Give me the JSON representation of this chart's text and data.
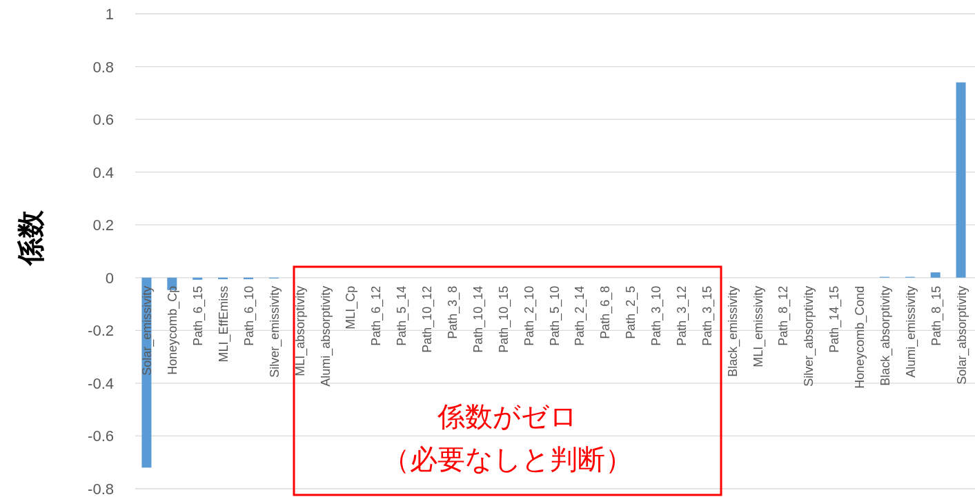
{
  "chart_data": {
    "type": "bar",
    "ylabel": "係数",
    "categories": [
      "Solar_emissivity",
      "Honeycomb_Cp",
      "Path_6_15",
      "MLI_EffEmiss",
      "Path_6_10",
      "Silver_emissivity",
      "MLI_absorptivity",
      "Alumi_absorptivity",
      "MLI_Cp",
      "Path_6_12",
      "Path_5_14",
      "Path_10_12",
      "Path_3_8",
      "Path_10_14",
      "Path_10_15",
      "Path_2_10",
      "Path_5_10",
      "Path_2_14",
      "Path_6_8",
      "Path_2_5",
      "Path_3_10",
      "Path_3_12",
      "Path_3_15",
      "Black_emissivity",
      "MLI_emissivity",
      "Path_8_12",
      "Silver_absorptivity",
      "Path_14_15",
      "Honeycomb_Cond",
      "Black_absorptivity",
      "Alumi_emissivity",
      "Path_8_15",
      "Solar_absorptivity"
    ],
    "values": [
      -0.72,
      -0.047,
      -0.008,
      -0.006,
      -0.006,
      -0.003,
      0,
      0,
      0,
      0,
      0,
      0,
      0,
      0,
      0,
      0,
      0,
      0,
      0,
      0,
      0,
      0,
      0,
      0,
      0,
      0,
      0,
      0,
      0,
      0.003,
      0.003,
      0.02,
      0.74
    ],
    "color": "#5b9bd5",
    "ylim": [
      -0.8,
      1
    ],
    "yticks": [
      -0.8,
      -0.6,
      -0.4,
      -0.2,
      0,
      0.2,
      0.4,
      0.6,
      0.8,
      1
    ],
    "grid": "y",
    "annotations": [
      "係数がゼロ",
      "（必要なしと判断）"
    ]
  }
}
